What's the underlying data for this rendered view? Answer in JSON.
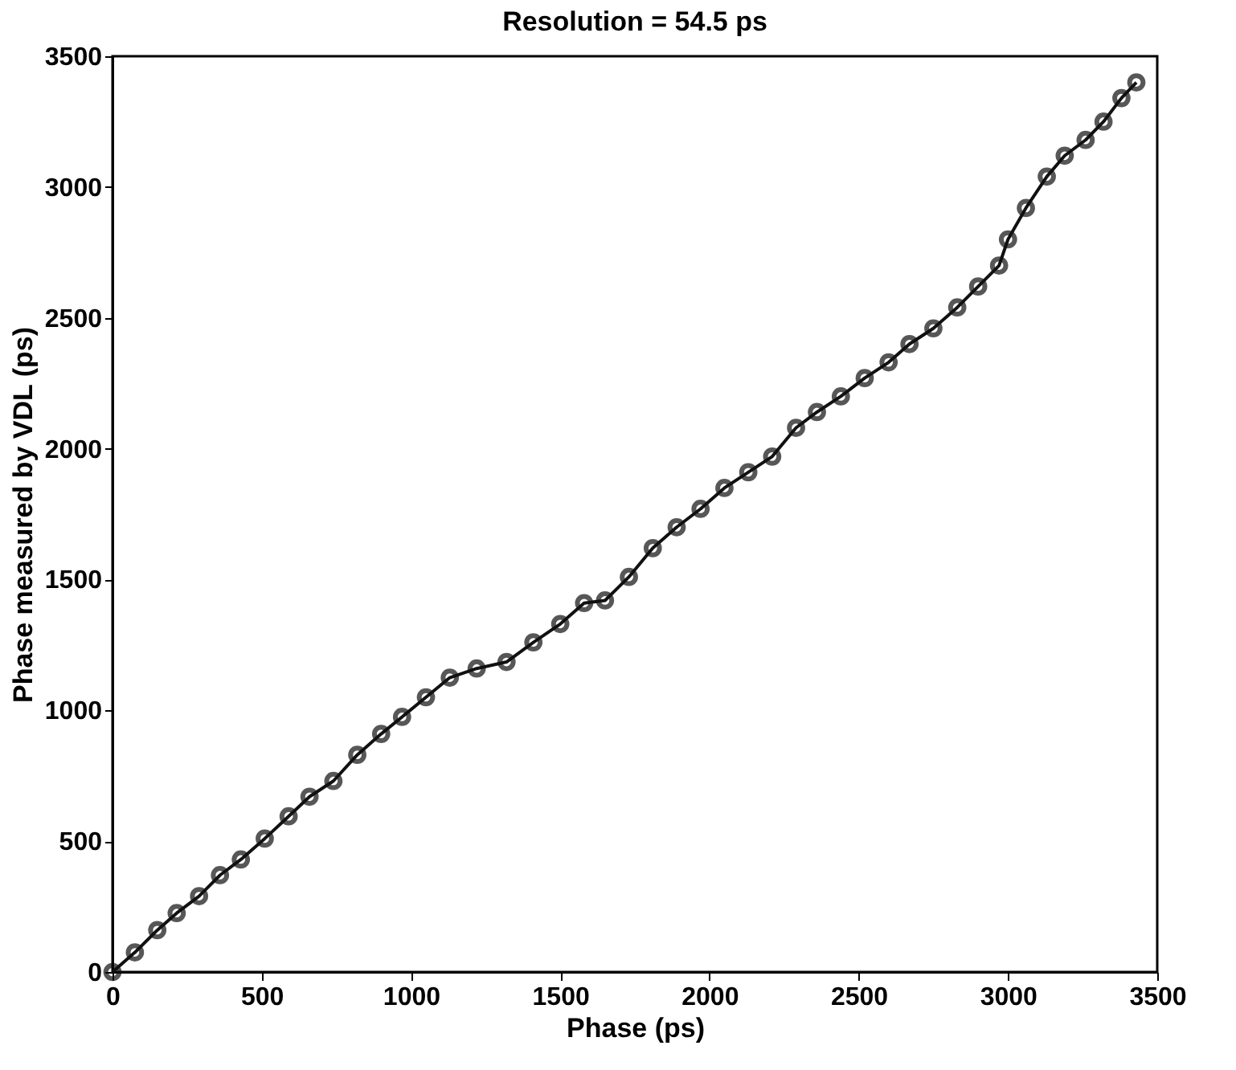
{
  "chart_data": {
    "type": "line",
    "title": "Resolution = 54.5 ps",
    "xlabel": "Phase (ps)",
    "ylabel": "Phase measured by VDL (ps)",
    "x": [
      0,
      75,
      150,
      215,
      290,
      360,
      430,
      510,
      590,
      660,
      740,
      820,
      900,
      970,
      1050,
      1130,
      1220,
      1320,
      1410,
      1500,
      1580,
      1650,
      1730,
      1810,
      1890,
      1970,
      2050,
      2130,
      2210,
      2290,
      2360,
      2440,
      2520,
      2600,
      2670,
      2750,
      2830,
      2900,
      2970,
      3000,
      3060,
      3130,
      3190,
      3260,
      3320,
      3380,
      3430
    ],
    "series": [
      {
        "color": "#111111",
        "values": [
          0,
          75,
          160,
          225,
          290,
          370,
          430,
          510,
          595,
          670,
          730,
          830,
          910,
          975,
          1050,
          1125,
          1160,
          1185,
          1260,
          1330,
          1410,
          1420,
          1510,
          1620,
          1700,
          1770,
          1850,
          1910,
          1970,
          2080,
          2140,
          2200,
          2270,
          2330,
          2400,
          2460,
          2540,
          2620,
          2700,
          2800,
          2920,
          3040,
          3120,
          3180,
          3250,
          3340,
          3400
        ]
      }
    ],
    "xlim": [
      0,
      3500
    ],
    "ylim": [
      0,
      3500
    ],
    "xticks": [
      0,
      500,
      1000,
      1500,
      2000,
      2500,
      3000,
      3500
    ],
    "yticks": [
      0,
      500,
      1000,
      1500,
      2000,
      2500,
      3000,
      3500
    ],
    "grid": false,
    "marker": "circle",
    "line_style": "solid",
    "legend": false
  }
}
